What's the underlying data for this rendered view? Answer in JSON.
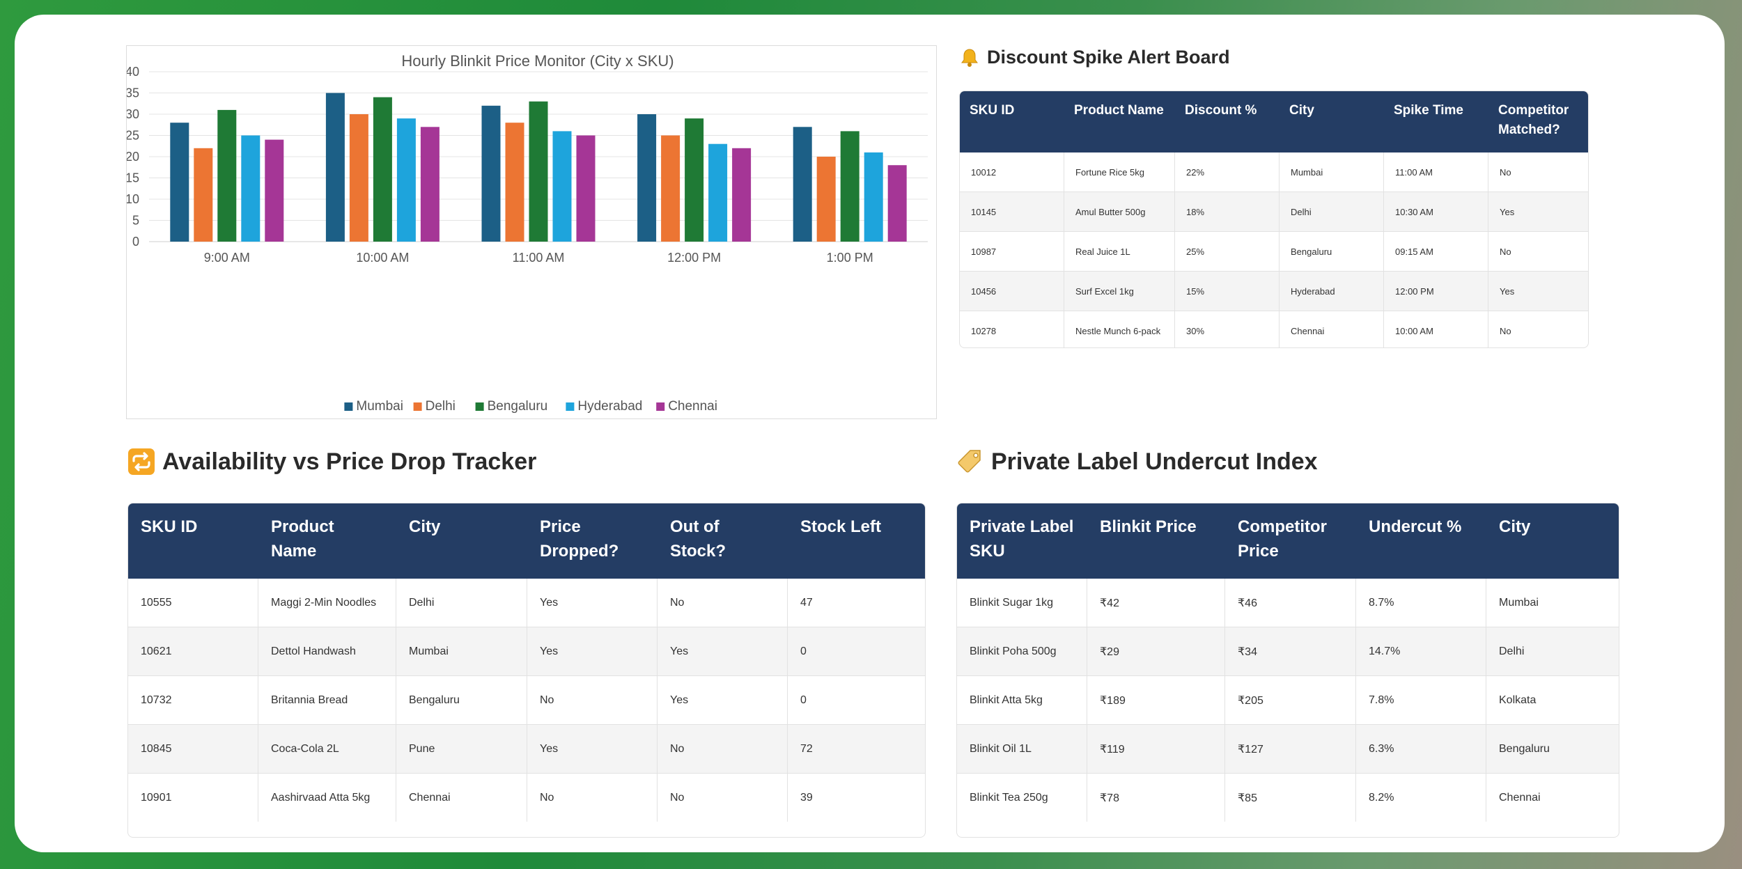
{
  "chart_data": {
    "type": "bar",
    "title": "Hourly Blinkit Price Monitor (City x SKU)",
    "categories": [
      "9:00 AM",
      "10:00 AM",
      "11:00 AM",
      "12:00 PM",
      "1:00 PM"
    ],
    "series": [
      {
        "name": "Mumbai",
        "color": "#1c5f86",
        "values": [
          28,
          35,
          32,
          30,
          27
        ]
      },
      {
        "name": "Delhi",
        "color": "#ec7533",
        "values": [
          22,
          30,
          28,
          25,
          20
        ]
      },
      {
        "name": "Bengaluru",
        "color": "#1f7a35",
        "values": [
          31,
          34,
          33,
          29,
          26
        ]
      },
      {
        "name": "Hyderabad",
        "color": "#1ea4dc",
        "values": [
          25,
          29,
          26,
          23,
          21
        ]
      },
      {
        "name": "Chennai",
        "color": "#a53696",
        "values": [
          24,
          27,
          25,
          22,
          18
        ]
      }
    ],
    "ylim": [
      0,
      40
    ],
    "yticks": [
      0,
      5,
      10,
      15,
      20,
      25,
      30,
      35,
      40
    ],
    "grid": true,
    "legend": "bottom"
  },
  "discount_board": {
    "title": "Discount Spike Alert Board",
    "icon": "bell-icon",
    "columns": [
      "SKU ID",
      "Product Name",
      "Discount %",
      "City",
      "Spike Time",
      "Competitor Matched?"
    ],
    "rows": [
      [
        "10012",
        "Fortune Rice 5kg",
        "22%",
        "Mumbai",
        "11:00 AM",
        "No"
      ],
      [
        "10145",
        "Amul Butter 500g",
        "18%",
        "Delhi",
        "10:30 AM",
        "Yes"
      ],
      [
        "10987",
        "Real Juice 1L",
        "25%",
        "Bengaluru",
        "09:15 AM",
        "No"
      ],
      [
        "10456",
        "Surf Excel 1kg",
        "15%",
        "Hyderabad",
        "12:00 PM",
        "Yes"
      ],
      [
        "10278",
        "Nestle Munch 6-pack",
        "30%",
        "Chennai",
        "10:00 AM",
        "No"
      ]
    ]
  },
  "availability_tracker": {
    "title": "Availability vs Price Drop Tracker",
    "icon": "repeat-icon",
    "columns": [
      "SKU ID",
      "Product Name",
      "City",
      "Price Dropped?",
      "Out of Stock?",
      "Stock Left"
    ],
    "rows": [
      [
        "10555",
        "Maggi 2-Min Noodles",
        "Delhi",
        "Yes",
        "No",
        "47"
      ],
      [
        "10621",
        "Dettol Handwash",
        "Mumbai",
        "Yes",
        "Yes",
        "0"
      ],
      [
        "10732",
        "Britannia Bread",
        "Bengaluru",
        "No",
        "Yes",
        "0"
      ],
      [
        "10845",
        "Coca-Cola 2L",
        "Pune",
        "Yes",
        "No",
        "72"
      ],
      [
        "10901",
        "Aashirvaad Atta 5kg",
        "Chennai",
        "No",
        "No",
        "39"
      ]
    ]
  },
  "private_label": {
    "title": "Private Label Undercut Index",
    "icon": "price-tag-icon",
    "columns": [
      "Private Label SKU",
      "Blinkit Price",
      "Competitor Price",
      "Undercut %",
      "City"
    ],
    "rows": [
      [
        "Blinkit Sugar 1kg",
        "₹42",
        "₹46",
        "8.7%",
        "Mumbai"
      ],
      [
        "Blinkit Poha 500g",
        "₹29",
        "₹34",
        "14.7%",
        "Delhi"
      ],
      [
        "Blinkit Atta 5kg",
        "₹189",
        "₹205",
        "7.8%",
        "Kolkata"
      ],
      [
        "Blinkit Oil 1L",
        "₹119",
        "₹127",
        "6.3%",
        "Bengaluru"
      ],
      [
        "Blinkit Tea 250g",
        "₹78",
        "₹85",
        "8.2%",
        "Chennai"
      ]
    ]
  }
}
